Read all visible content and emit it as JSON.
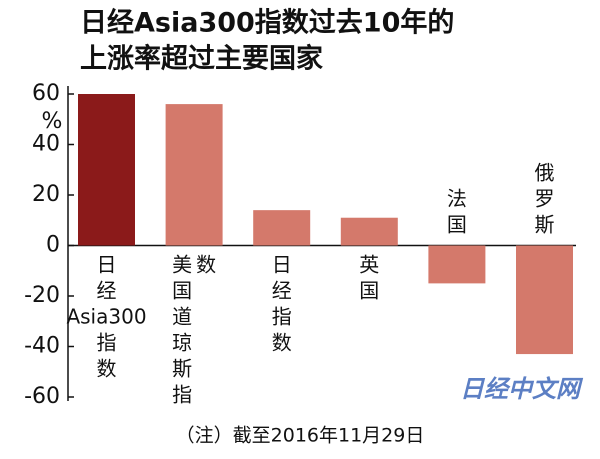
{
  "chart_data": {
    "type": "bar",
    "title": [
      "日经Asia300指数过去10年的",
      "上涨率超过主要国家"
    ],
    "y_label": "%",
    "categories": [
      "日经Asia300指数",
      "美国道琼斯指数",
      "日经指数",
      "英国",
      "法国",
      "俄罗斯"
    ],
    "values": [
      60,
      56,
      14,
      11,
      -15,
      -43
    ],
    "colors": [
      "#8b1a1a",
      "#d4796b",
      "#d4796b",
      "#d4796b",
      "#d4796b",
      "#d4796b"
    ],
    "ylim": [
      -60,
      60
    ],
    "yticks": [
      -60,
      -40,
      -20,
      0,
      20,
      40,
      60
    ],
    "note": "（注）截至2016年11月29日",
    "watermark": "日经中文网"
  }
}
